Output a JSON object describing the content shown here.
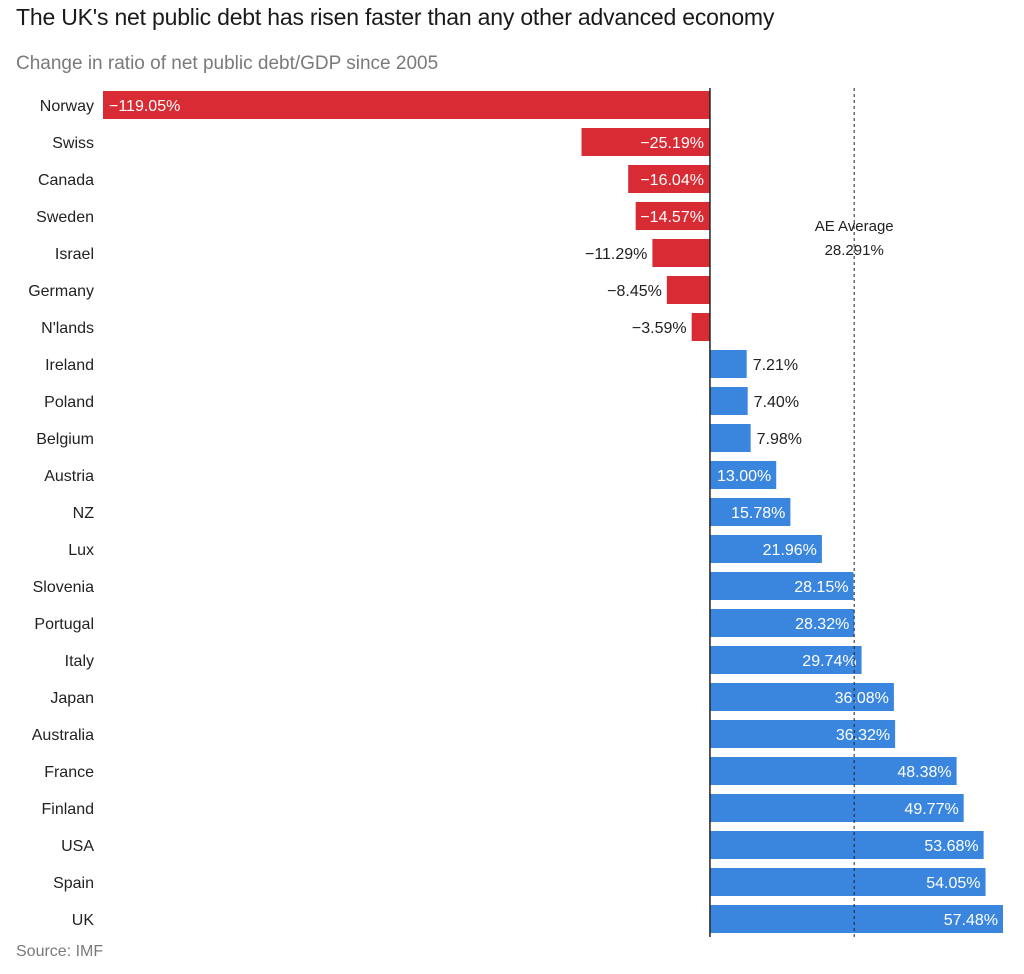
{
  "chart_data": {
    "type": "bar",
    "orientation": "horizontal",
    "title": "The UK's net public debt has risen faster than any other advanced economy",
    "subtitle": "Change in ratio of net public debt/GDP since 2005",
    "source": "Source: IMF",
    "xlabel": "",
    "ylabel": "",
    "xlim": [
      -119.05,
      57.48
    ],
    "grid": false,
    "categories": [
      "Norway",
      "Swiss",
      "Canada",
      "Sweden",
      "Israel",
      "Germany",
      "N'lands",
      "Ireland",
      "Poland",
      "Belgium",
      "Austria",
      "NZ",
      "Lux",
      "Slovenia",
      "Portugal",
      "Italy",
      "Japan",
      "Australia",
      "France",
      "Finland",
      "USA",
      "Spain",
      "UK"
    ],
    "values": [
      -119.05,
      -25.19,
      -16.04,
      -14.57,
      -11.29,
      -8.45,
      -3.59,
      7.21,
      7.4,
      7.98,
      13.0,
      15.78,
      21.96,
      28.15,
      28.32,
      29.74,
      36.08,
      36.32,
      48.38,
      49.77,
      53.68,
      54.05,
      57.48
    ],
    "labels": [
      "−119.05%",
      "−25.19%",
      "−16.04%",
      "−14.57%",
      "−11.29%",
      "−8.45%",
      "−3.59%",
      "7.21%",
      "7.40%",
      "7.98%",
      "13.00%",
      "15.78%",
      "21.96%",
      "28.15%",
      "28.32%",
      "29.74%",
      "36.08%",
      "36.32%",
      "48.38%",
      "49.77%",
      "53.68%",
      "54.05%",
      "57.48%"
    ],
    "colors": {
      "negative": "#d92b34",
      "positive": "#3a86df",
      "axis": "#222222",
      "reference": "#222222"
    },
    "reference_line": {
      "value": 28.291,
      "label_line1": "AE Average",
      "label_line2": "28.291%",
      "style": "dashed"
    }
  }
}
